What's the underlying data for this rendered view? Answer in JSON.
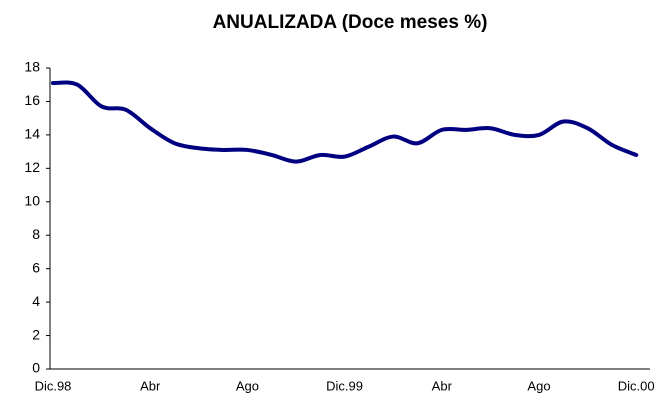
{
  "chart_data": {
    "type": "line",
    "title": "ANUALIZADA (Doce meses %)",
    "categories": [
      "Dic.98",
      null,
      null,
      null,
      "Abr",
      null,
      null,
      null,
      "Ago",
      null,
      null,
      null,
      "Dic.99",
      null,
      null,
      null,
      "Abr",
      null,
      null,
      null,
      "Ago",
      null,
      null,
      null,
      "Dic.00"
    ],
    "series": [
      {
        "name": "Anualizada",
        "color": "#000080",
        "values": [
          17.1,
          17.0,
          15.7,
          15.5,
          14.4,
          13.5,
          13.2,
          13.1,
          13.1,
          12.8,
          12.4,
          12.8,
          12.7,
          13.3,
          13.9,
          13.5,
          14.3,
          14.3,
          14.4,
          14.0,
          14.0,
          14.8,
          14.4,
          13.4,
          12.8
        ]
      }
    ],
    "ylim": [
      0,
      18
    ],
    "yticks": [
      0,
      2,
      4,
      6,
      8,
      10,
      12,
      14,
      16,
      18
    ]
  }
}
